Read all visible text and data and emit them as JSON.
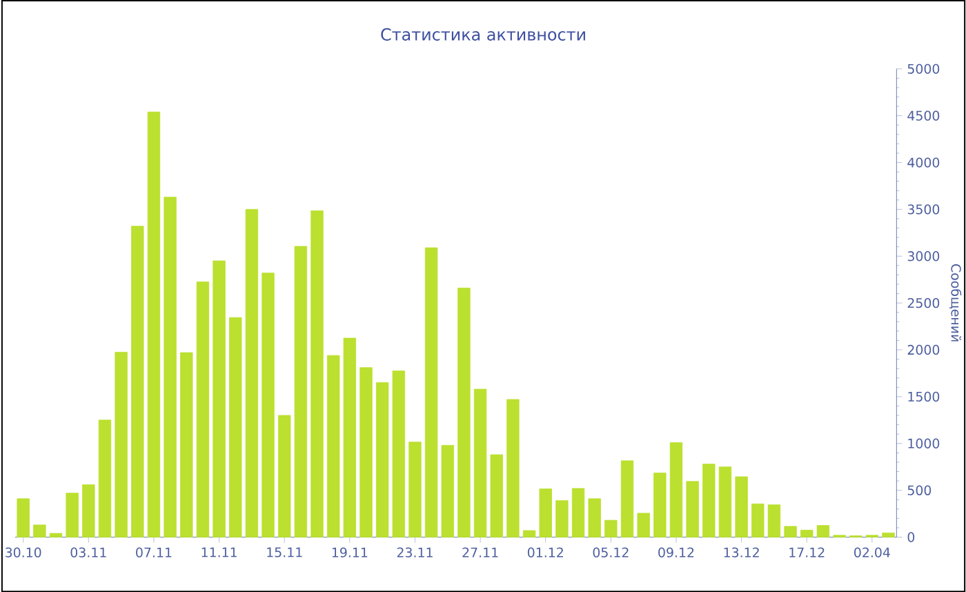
{
  "chart_data": {
    "type": "bar",
    "title": "Статистика активности",
    "ylabel": "Сообщений",
    "categories": [
      "30.10",
      null,
      null,
      null,
      "03.11",
      null,
      null,
      null,
      "07.11",
      null,
      null,
      null,
      "11.11",
      null,
      null,
      null,
      "15.11",
      null,
      null,
      null,
      "19.11",
      null,
      null,
      null,
      "23.11",
      null,
      null,
      null,
      "27.11",
      null,
      null,
      null,
      "01.12",
      null,
      null,
      null,
      "05.12",
      null,
      null,
      null,
      "09.12",
      null,
      null,
      null,
      "13.12",
      null,
      null,
      null,
      "17.12",
      null,
      null,
      null,
      "02.04",
      null
    ],
    "values": [
      410,
      130,
      40,
      470,
      560,
      1250,
      1975,
      3320,
      4540,
      3630,
      1970,
      2725,
      2950,
      2345,
      3500,
      2820,
      1300,
      3105,
      3485,
      1940,
      2125,
      1810,
      1650,
      1775,
      1015,
      3090,
      980,
      2660,
      1580,
      880,
      1470,
      70,
      515,
      390,
      520,
      410,
      180,
      815,
      255,
      685,
      1010,
      595,
      780,
      750,
      645,
      355,
      345,
      115,
      75,
      125,
      20,
      15,
      20,
      45
    ],
    "color": "#bbe02f",
    "ylim": [
      0,
      5000
    ],
    "yticks": [
      0,
      500,
      1000,
      1500,
      2000,
      2500,
      3000,
      3500,
      4000,
      4500,
      5000
    ]
  }
}
